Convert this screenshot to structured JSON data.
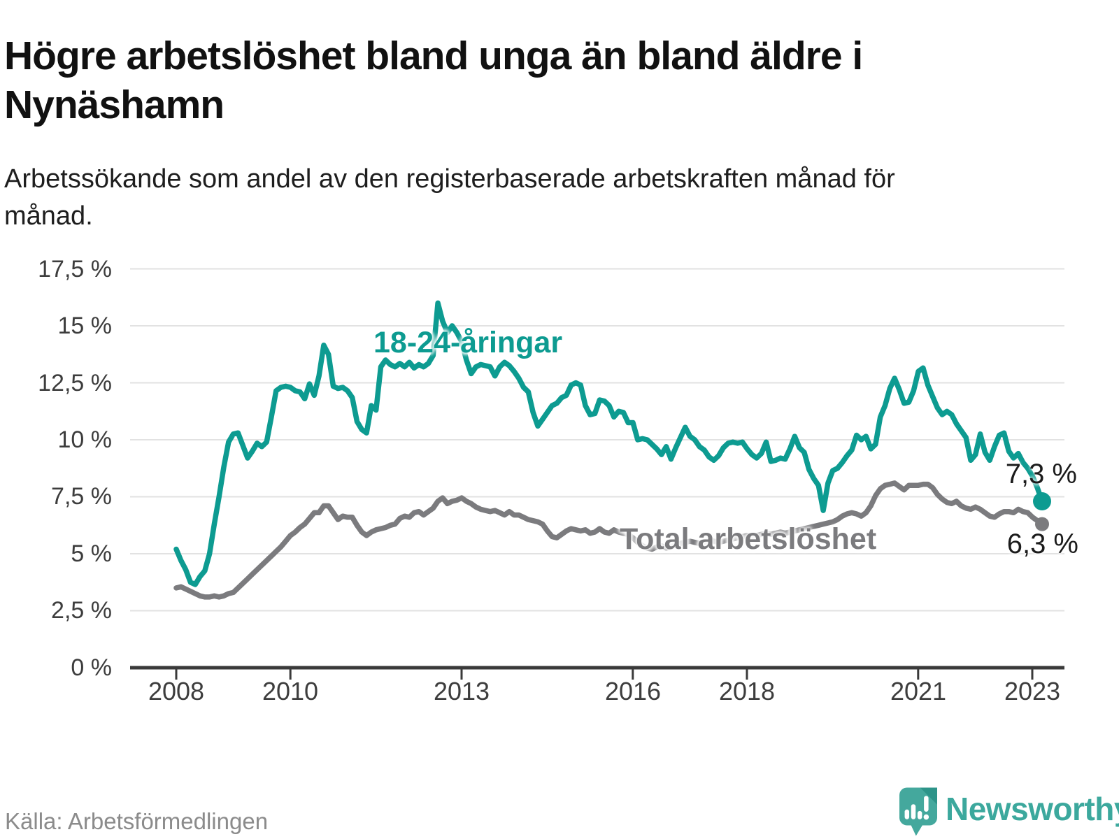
{
  "header": {
    "title": "Högre arbetslöshet bland unga än bland äldre i Nynäshamn",
    "subtitle": "Arbetssökande som andel av den registerbaserade arbetskraften månad för månad."
  },
  "footer": {
    "source": "Källa: Arbetsförmedlingen",
    "brand": "Newsworthy"
  },
  "colors": {
    "young": "#0d9b91",
    "total": "#7b7b7e",
    "grid": "#e2e2e2",
    "axis": "#3a3a3a",
    "tick_text": "#3d3d3d",
    "logo_teal": "#44a89d",
    "logo_fold": "#2d9489"
  },
  "chart_data": {
    "type": "line",
    "title": "Högre arbetslöshet bland unga än bland äldre i Nynäshamn",
    "subtitle": "Arbetssökande som andel av den registerbaserade arbetskraften månad för månad.",
    "x_start": "2008-01",
    "x_end": "2023-03",
    "months_per_point": 1,
    "x_ticks": [
      2008,
      2010,
      2013,
      2016,
      2018,
      2021,
      2023
    ],
    "x_tick_labels": [
      "2008",
      "2010",
      "2013",
      "2016",
      "2018",
      "2021",
      "2023"
    ],
    "y_ticks": [
      0,
      2.5,
      5,
      7.5,
      10,
      12.5,
      15,
      17.5
    ],
    "y_tick_labels": [
      "0 %",
      "2,5 %",
      "5 %",
      "7,5 %",
      "10 %",
      "12,5 %",
      "15 %",
      "17,5 %"
    ],
    "ylim": [
      0,
      18.5
    ],
    "grid": "horizontal",
    "legend": "inline-labels",
    "series": [
      {
        "name": "18-24-åringar",
        "color": "#0d9b91",
        "end_label": "7,3 %",
        "end_value": 7.3,
        "values": [
          5.2,
          4.7,
          4.3,
          3.75,
          3.65,
          4.0,
          4.25,
          5.0,
          6.3,
          7.5,
          8.8,
          9.9,
          10.25,
          10.3,
          9.75,
          9.2,
          9.5,
          9.85,
          9.7,
          9.9,
          11.0,
          12.15,
          12.3,
          12.35,
          12.3,
          12.15,
          12.1,
          11.8,
          12.45,
          11.95,
          12.8,
          14.15,
          13.75,
          12.35,
          12.25,
          12.3,
          12.15,
          11.85,
          10.8,
          10.45,
          10.3,
          11.5,
          11.3,
          13.2,
          13.5,
          13.3,
          13.2,
          13.35,
          13.2,
          13.4,
          13.15,
          13.3,
          13.2,
          13.35,
          13.7,
          16.0,
          15.2,
          14.7,
          15.0,
          14.7,
          14.3,
          13.5,
          12.9,
          13.2,
          13.3,
          13.25,
          13.2,
          12.8,
          13.2,
          13.4,
          13.25,
          13.0,
          12.7,
          12.3,
          12.1,
          11.2,
          10.6,
          10.9,
          11.2,
          11.5,
          11.6,
          11.85,
          11.95,
          12.4,
          12.5,
          12.4,
          11.5,
          11.1,
          11.15,
          11.75,
          11.7,
          11.5,
          11.0,
          11.25,
          11.2,
          10.75,
          10.75,
          10.0,
          10.05,
          10.0,
          9.8,
          9.6,
          9.35,
          9.7,
          9.15,
          9.65,
          10.1,
          10.55,
          10.15,
          10.0,
          9.7,
          9.55,
          9.25,
          9.1,
          9.3,
          9.65,
          9.85,
          9.9,
          9.85,
          9.9,
          9.6,
          9.35,
          9.2,
          9.4,
          9.9,
          9.05,
          9.1,
          9.2,
          9.15,
          9.6,
          10.15,
          9.65,
          9.45,
          8.7,
          8.3,
          8.0,
          6.9,
          8.1,
          8.65,
          8.75,
          9.0,
          9.3,
          9.55,
          10.2,
          10.0,
          10.15,
          9.6,
          9.8,
          11.0,
          11.5,
          12.25,
          12.7,
          12.2,
          11.6,
          11.65,
          12.15,
          13.0,
          13.15,
          12.4,
          11.9,
          11.4,
          11.1,
          11.25,
          11.1,
          10.7,
          10.4,
          10.1,
          9.1,
          9.35,
          10.25,
          9.45,
          9.1,
          9.7,
          10.2,
          10.3,
          9.5,
          9.2,
          9.4,
          9.0,
          8.75,
          8.4,
          7.9,
          7.3
        ]
      },
      {
        "name": "Total arbetslöshet",
        "color": "#7b7b7e",
        "end_label": "6,3 %",
        "end_value": 6.3,
        "values": [
          3.5,
          3.55,
          3.45,
          3.35,
          3.25,
          3.15,
          3.1,
          3.1,
          3.15,
          3.1,
          3.15,
          3.25,
          3.3,
          3.5,
          3.7,
          3.9,
          4.1,
          4.3,
          4.5,
          4.7,
          4.9,
          5.1,
          5.3,
          5.55,
          5.8,
          5.95,
          6.15,
          6.3,
          6.55,
          6.8,
          6.8,
          7.1,
          7.1,
          6.8,
          6.5,
          6.65,
          6.6,
          6.6,
          6.25,
          5.95,
          5.8,
          5.95,
          6.05,
          6.1,
          6.15,
          6.25,
          6.3,
          6.55,
          6.65,
          6.6,
          6.8,
          6.85,
          6.7,
          6.85,
          7.0,
          7.3,
          7.45,
          7.2,
          7.3,
          7.35,
          7.45,
          7.3,
          7.2,
          7.05,
          6.95,
          6.9,
          6.85,
          6.9,
          6.8,
          6.7,
          6.85,
          6.7,
          6.7,
          6.6,
          6.5,
          6.45,
          6.4,
          6.3,
          6.0,
          5.75,
          5.7,
          5.85,
          6.0,
          6.1,
          6.05,
          6.0,
          6.05,
          5.9,
          5.95,
          6.1,
          5.95,
          5.9,
          6.05,
          5.95,
          5.9,
          5.85,
          5.7,
          5.5,
          5.35,
          5.25,
          5.2,
          5.3,
          5.35,
          5.25,
          5.3,
          5.4,
          5.45,
          5.5,
          5.55,
          5.5,
          5.45,
          5.5,
          5.6,
          5.55,
          5.5,
          5.55,
          5.6,
          5.65,
          5.7,
          5.75,
          5.8,
          5.75,
          5.8,
          5.85,
          5.9,
          5.85,
          5.9,
          5.95,
          5.9,
          5.95,
          6.0,
          6.05,
          6.1,
          6.15,
          6.2,
          6.25,
          6.3,
          6.35,
          6.4,
          6.5,
          6.65,
          6.75,
          6.8,
          6.75,
          6.65,
          6.8,
          7.1,
          7.55,
          7.85,
          8.0,
          8.05,
          8.1,
          7.95,
          7.8,
          8.0,
          8.0,
          8.0,
          8.05,
          8.05,
          7.9,
          7.6,
          7.4,
          7.25,
          7.2,
          7.3,
          7.1,
          7.0,
          6.95,
          7.05,
          6.95,
          6.8,
          6.65,
          6.6,
          6.75,
          6.85,
          6.85,
          6.8,
          6.95,
          6.85,
          6.8,
          6.6,
          6.45,
          6.3
        ]
      }
    ]
  }
}
